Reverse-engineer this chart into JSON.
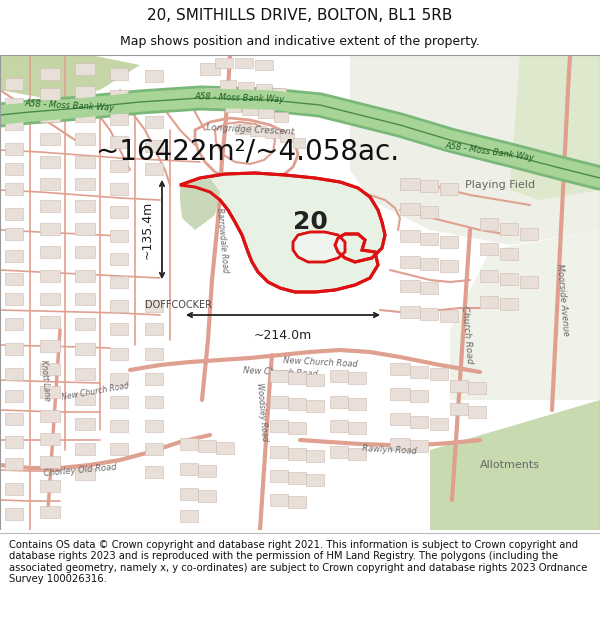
{
  "title_line1": "20, SMITHILLS DRIVE, BOLTON, BL1 5RB",
  "title_line2": "Map shows position and indicative extent of the property.",
  "area_text": "~16422m²/~4.058ac.",
  "label_20": "20",
  "dim_width": "~214.0m",
  "dim_height": "~135.4m",
  "footer_text": "Contains OS data © Crown copyright and database right 2021. This information is subject to Crown copyright and database rights 2023 and is reproduced with the permission of HM Land Registry. The polygons (including the associated geometry, namely x, y co-ordinates) are subject to Crown copyright and database rights 2023 Ordnance Survey 100026316.",
  "bg_map": "#f2ede8",
  "bg_white": "#ffffff",
  "road_line": "#e0a090",
  "road_fill": "#f5ede8",
  "building_fill": "#e8e0d8",
  "building_edge": "#d0b8b0",
  "green_road": "#7ab87a",
  "green_road_label": "#2a6a2a",
  "green_area": "#c8dab0",
  "green_dark": "#9abf80",
  "property_fill": "#e8f0e4",
  "property_edge": "#dd1111",
  "arrow_color": "#222222",
  "text_color": "#222222",
  "label_gray": "#666666",
  "title1_fontsize": 11,
  "title2_fontsize": 9,
  "area_fontsize": 20,
  "footer_fontsize": 7.2
}
